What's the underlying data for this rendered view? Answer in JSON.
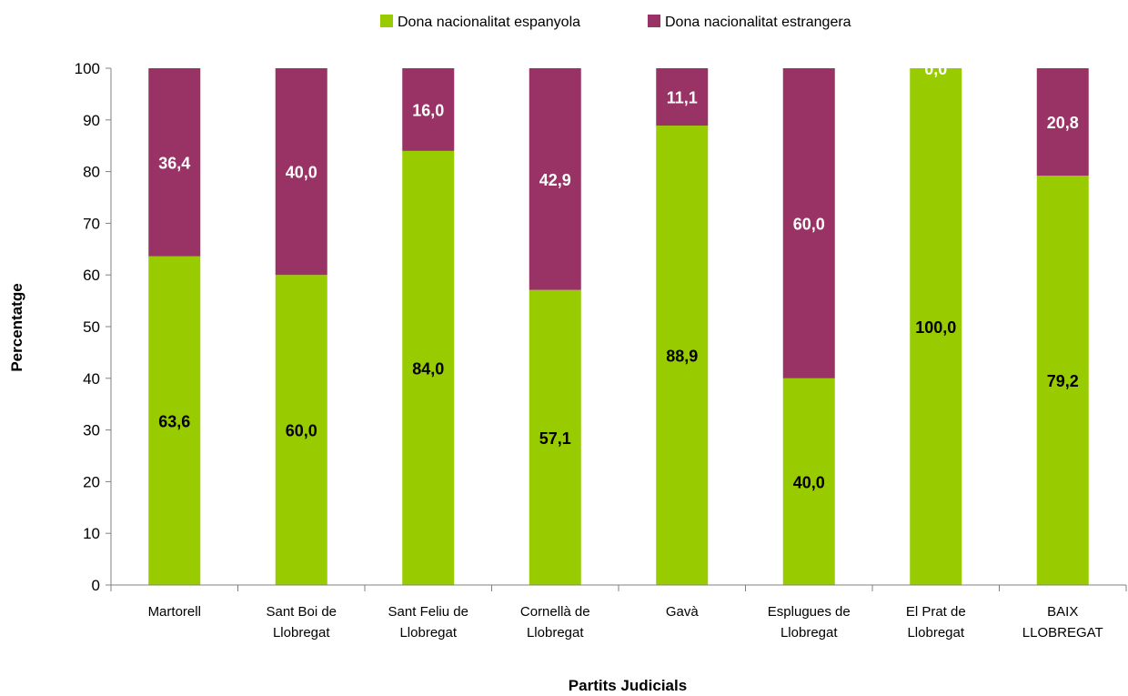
{
  "chart_data": {
    "type": "bar",
    "stacked": true,
    "categories": [
      [
        "Martorell"
      ],
      [
        "Sant Boi de",
        "Llobregat"
      ],
      [
        "Sant Feliu de",
        "Llobregat"
      ],
      [
        "Cornellà de",
        "Llobregat"
      ],
      [
        "Gavà"
      ],
      [
        "Esplugues de",
        "Llobregat"
      ],
      [
        "El Prat de",
        "Llobregat"
      ],
      [
        "BAIX",
        "LLOBREGAT"
      ]
    ],
    "series": [
      {
        "name": "Dona nacionalitat espanyola",
        "color": "#99cc00",
        "values": [
          63.6,
          60.0,
          84.0,
          57.1,
          88.9,
          40.0,
          100.0,
          79.2
        ],
        "labels": [
          "63,6",
          "60,0",
          "84,0",
          "57,1",
          "88,9",
          "40,0",
          "100,0",
          "79,2"
        ],
        "label_color": "#000000"
      },
      {
        "name": "Dona nacionalitat estrangera",
        "color": "#993366",
        "values": [
          36.4,
          40.0,
          16.0,
          42.9,
          11.1,
          60.0,
          0.0,
          20.8
        ],
        "labels": [
          "36,4",
          "40,0",
          "16,0",
          "42,9",
          "11,1",
          "60,0",
          "0,0",
          "20,8"
        ],
        "label_color": "#ffffff"
      }
    ],
    "ylim": [
      0,
      100
    ],
    "yticks": [
      "0",
      "10",
      "20",
      "30",
      "40",
      "50",
      "60",
      "70",
      "80",
      "90",
      "100"
    ],
    "xlabel": "Partits Judicials",
    "ylabel": "Percentatge",
    "legend_position": "top-center",
    "grid": false
  }
}
